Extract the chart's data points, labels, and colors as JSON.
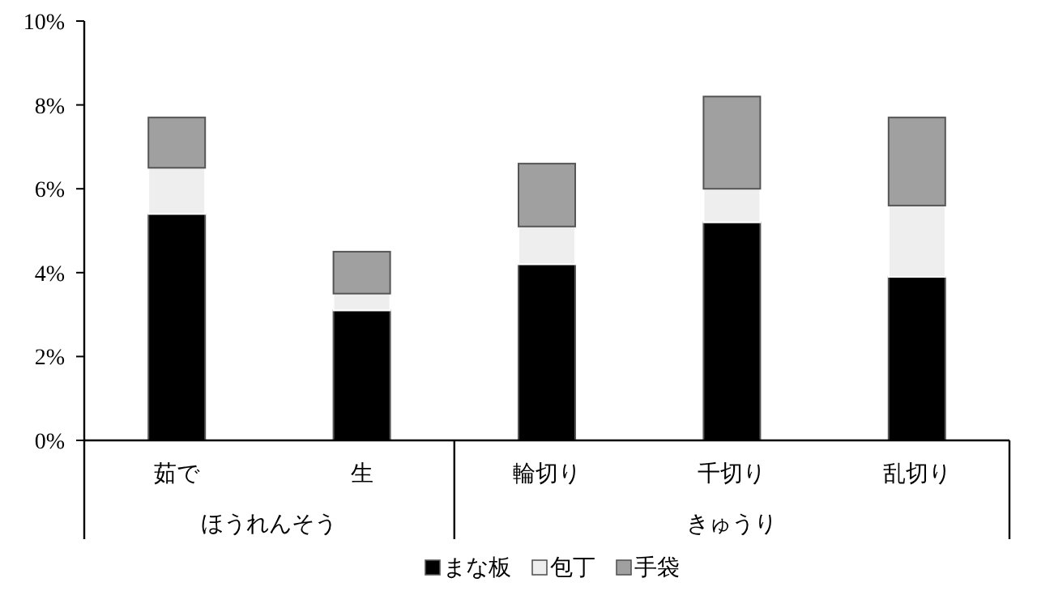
{
  "chart_data": {
    "type": "bar",
    "stacked": true,
    "categories": [
      "茹で",
      "生",
      "輪切り",
      "千切り",
      "乱切り"
    ],
    "series": [
      {
        "name": "まな板",
        "color": "#000000",
        "values": [
          5.4,
          3.1,
          4.2,
          5.2,
          3.9
        ]
      },
      {
        "name": "包丁",
        "color": "#eeeeee",
        "values": [
          1.1,
          0.4,
          0.9,
          0.8,
          1.7
        ]
      },
      {
        "name": "手袋",
        "color": "#a0a0a0",
        "values": [
          1.2,
          1.0,
          1.5,
          2.2,
          2.1
        ]
      }
    ],
    "ylim": [
      0,
      10
    ],
    "yticks": [
      {
        "value": 0,
        "label": "0%"
      },
      {
        "value": 2,
        "label": "2%"
      },
      {
        "value": 4,
        "label": "4%"
      },
      {
        "value": 6,
        "label": "6%"
      },
      {
        "value": 8,
        "label": "8%"
      },
      {
        "value": 10,
        "label": "10%"
      }
    ],
    "annotations": [
      "ほうれんそう",
      "きゅうり"
    ],
    "grid": false,
    "legend": "bottom"
  }
}
